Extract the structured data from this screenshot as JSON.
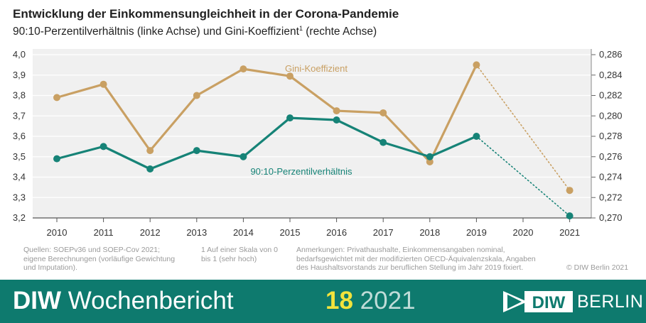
{
  "header": {
    "title": "Entwicklung der Einkommensungleichheit in der Corona-Pandemie",
    "subtitle": "90:10-Perzentilverhältnis (linke Achse) und Gini-Koeffizient",
    "subtitle_sup": "1",
    "subtitle_end": " (rechte Achse)"
  },
  "chart_data": {
    "type": "line",
    "x": [
      "2010",
      "2011",
      "2012",
      "2013",
      "2014",
      "2015",
      "2016",
      "2017",
      "2018",
      "2019",
      "2020",
      "2021"
    ],
    "y_left": {
      "ylim": [
        3.2,
        4.0
      ],
      "ticks": [
        "3,2",
        "3,3",
        "3,4",
        "3,5",
        "3,6",
        "3,7",
        "3,8",
        "3,9",
        "4,0"
      ]
    },
    "y_right": {
      "ylim": [
        0.27,
        0.286
      ],
      "ticks": [
        "0,270",
        "0,272",
        "0,274",
        "0,276",
        "0,278",
        "0,280",
        "0,282",
        "0,284",
        "0,286"
      ]
    },
    "series": [
      {
        "name": "Gini-Koeffizient",
        "axis": "right",
        "color": "#c9a063",
        "values": [
          0.2818,
          0.2831,
          0.2766,
          0.282,
          0.2846,
          0.2839,
          0.2805,
          0.2803,
          0.2755,
          0.285,
          null,
          0.2727
        ],
        "dotted_from": "2019"
      },
      {
        "name": "90:10-Perzentilverhältnis",
        "axis": "left",
        "color": "#168377",
        "values": [
          3.49,
          3.55,
          3.44,
          3.53,
          3.5,
          3.69,
          3.68,
          3.57,
          3.5,
          3.6,
          null,
          3.21
        ],
        "dotted_from": "2019"
      }
    ],
    "grid": true
  },
  "notes": {
    "sources": "Quellen: SOEPv36 und SOEP-Cov 2021; eigene Berechnungen (vorläufige Gewichtung und Imputation).",
    "footnote": "1    Auf einer Skala von 0 bis 1 (sehr hoch)",
    "remarks": "Anmerkungen: Privathaushalte, Einkommensangaben nominal, bedarfsgewichtet mit der modifizierten OECD-Äquivalenzskala, Angaben des Haushaltsvorstands zur beruflichen Stellung im Jahr 2019 fixiert.",
    "copyright": "© DIW Berlin 2021"
  },
  "footer": {
    "brand_bold": "DIW",
    "brand_rest": " Wochenbericht",
    "issue_number": "18",
    "issue_year": "2021",
    "logo_text": "BERLIN",
    "logo_mark": "DIW",
    "bg_color": "#0e7a6e"
  }
}
